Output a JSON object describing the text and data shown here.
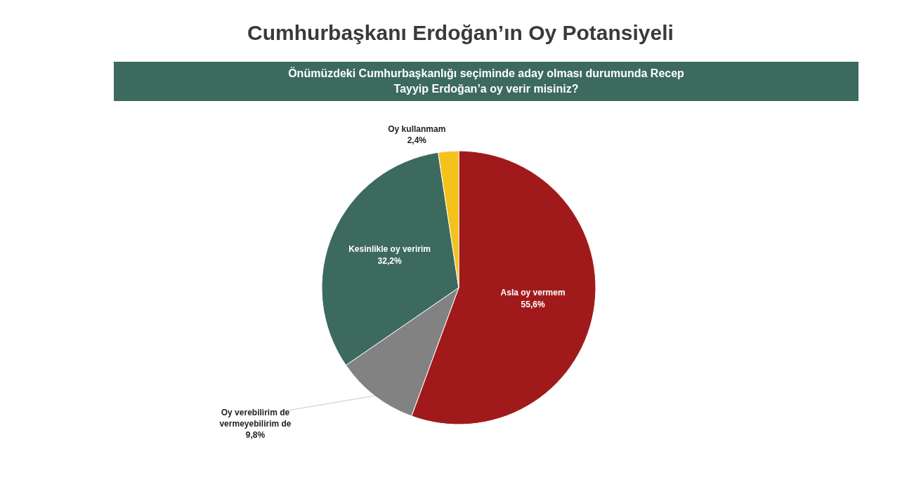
{
  "chart_data": {
    "type": "pie",
    "title": "Cumhurbaşkanı Erdoğan’ın Oy Potansiyeli",
    "subtitle": "Önümüzdeki Cumhurbaşkanlığı seçiminde aday olması durumunda Recep Tayyip Erdoğan’a oy verir misiniz?",
    "categories": [
      "Asla oy vermem",
      "Oy verebilirim de vermeyebilirim de",
      "Kesinlikle oy veririm",
      "Oy kullanmam"
    ],
    "values": [
      55.6,
      9.8,
      32.2,
      2.4
    ],
    "colors": [
      "#a11a1b",
      "#828282",
      "#3d6a5e",
      "#f4c21a"
    ],
    "value_labels": [
      "55,6%",
      "9,8%",
      "32,2%",
      "2,4%"
    ],
    "legend": false
  }
}
